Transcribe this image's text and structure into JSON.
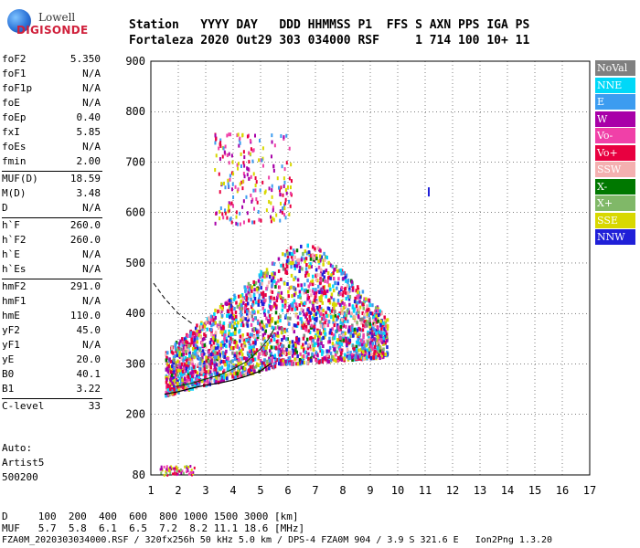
{
  "logo": {
    "line1": "Lowell",
    "line2": "DIGISONDE"
  },
  "header": {
    "row1": "Station   YYYY DAY   DDD HHMMSS P1  FFS S AXN PPS IGA PS",
    "row2": "Fortaleza 2020 Out29 303 034000 RSF     1 714 100 10+ 11"
  },
  "params": [
    {
      "label": "foF2",
      "value": "5.350"
    },
    {
      "label": "foF1",
      "value": "N/A"
    },
    {
      "label": "foF1p",
      "value": "N/A"
    },
    {
      "label": "foE",
      "value": "N/A"
    },
    {
      "label": "foEp",
      "value": "0.40"
    },
    {
      "label": "fxI",
      "value": "5.85"
    },
    {
      "label": "foEs",
      "value": "N/A"
    },
    {
      "label": "fmin",
      "value": "2.00"
    },
    {
      "label": "MUF(D)",
      "value": "18.59"
    },
    {
      "label": "M(D)",
      "value": "3.48"
    },
    {
      "label": "D",
      "value": "N/A"
    },
    {
      "label": "h`F",
      "value": "260.0"
    },
    {
      "label": "h`F2",
      "value": "260.0"
    },
    {
      "label": "h`E",
      "value": "N/A"
    },
    {
      "label": "h`Es",
      "value": "N/A"
    },
    {
      "label": "hmF2",
      "value": "291.0"
    },
    {
      "label": "hmF1",
      "value": "N/A"
    },
    {
      "label": "hmE",
      "value": "110.0"
    },
    {
      "label": "yF2",
      "value": "45.0"
    },
    {
      "label": "yF1",
      "value": "N/A"
    },
    {
      "label": "yE",
      "value": "20.0"
    },
    {
      "label": "B0",
      "value": "40.1"
    },
    {
      "label": "B1",
      "value": "3.22"
    },
    {
      "label": "C-level",
      "value": "33"
    }
  ],
  "auto": {
    "line1": "Auto:",
    "line2": "Artist5",
    "line3": "500200"
  },
  "legend": [
    {
      "label": "NoVal",
      "color": "#808080"
    },
    {
      "label": "NNE",
      "color": "#00d8f8"
    },
    {
      "label": "E",
      "color": "#3c9cf0"
    },
    {
      "label": "W",
      "color": "#a800a8"
    },
    {
      "label": "Vo-",
      "color": "#f040a8"
    },
    {
      "label": "Vo+",
      "color": "#e80040"
    },
    {
      "label": "SSW",
      "color": "#f4b0b0"
    },
    {
      "label": "X-",
      "color": "#007800"
    },
    {
      "label": "X+",
      "color": "#80b868"
    },
    {
      "label": "SSE",
      "color": "#d8d800"
    },
    {
      "label": "NNW",
      "color": "#2020d8"
    }
  ],
  "bottom": {
    "line1": "D     100  200  400  600  800 1000 1500 3000 [km]",
    "line2": "MUF   5.7  5.8  6.1  6.5  7.2  8.2 11.1 18.6 [MHz]",
    "line3": "FZA0M_2020303034000.RSF / 320fx256h 50 kHz 5.0 km / DPS-4 FZA0M 904 / 3.9 S 321.6 E   Ion2Png 1.3.20"
  },
  "chart_data": {
    "type": "scatter",
    "xlim": [
      1,
      17
    ],
    "ylim": [
      80,
      900
    ],
    "x_ticks": [
      1,
      2,
      3,
      4,
      5,
      6,
      7,
      8,
      9,
      10,
      11,
      12,
      13,
      14,
      15,
      16,
      17
    ],
    "y_ticks": [
      80,
      200,
      300,
      400,
      500,
      600,
      700,
      800,
      900
    ],
    "grid": true,
    "echo_regions": [
      {
        "name": "F-trace",
        "x": [
          1.5,
          9.6
        ],
        "y": [
          230,
          560
        ]
      },
      {
        "name": "spread-F high",
        "x": [
          3.0,
          6.2
        ],
        "y": [
          560,
          780
        ]
      },
      {
        "name": "Es/low",
        "x": [
          1.3,
          2.6
        ],
        "y": [
          80,
          100
        ]
      },
      {
        "name": "isolated",
        "x": [
          11.1,
          11.1
        ],
        "y": [
          630,
          650
        ]
      }
    ],
    "profile_curve": {
      "x": [
        1.5,
        2.0,
        2.5,
        3.0,
        3.5,
        4.0,
        4.5,
        5.0,
        5.35
      ],
      "y": [
        240,
        245,
        252,
        258,
        262,
        268,
        276,
        286,
        300
      ]
    },
    "trace_x": {
      "x": [
        1.9,
        2.5,
        3.0,
        3.5,
        4.0,
        4.5,
        5.0,
        5.3,
        5.5
      ],
      "y": [
        255,
        262,
        270,
        278,
        290,
        305,
        330,
        350,
        370
      ]
    },
    "dashed_extension": {
      "x": [
        1.1,
        1.5,
        2.0,
        2.5
      ],
      "y": [
        460,
        430,
        400,
        380
      ]
    }
  }
}
